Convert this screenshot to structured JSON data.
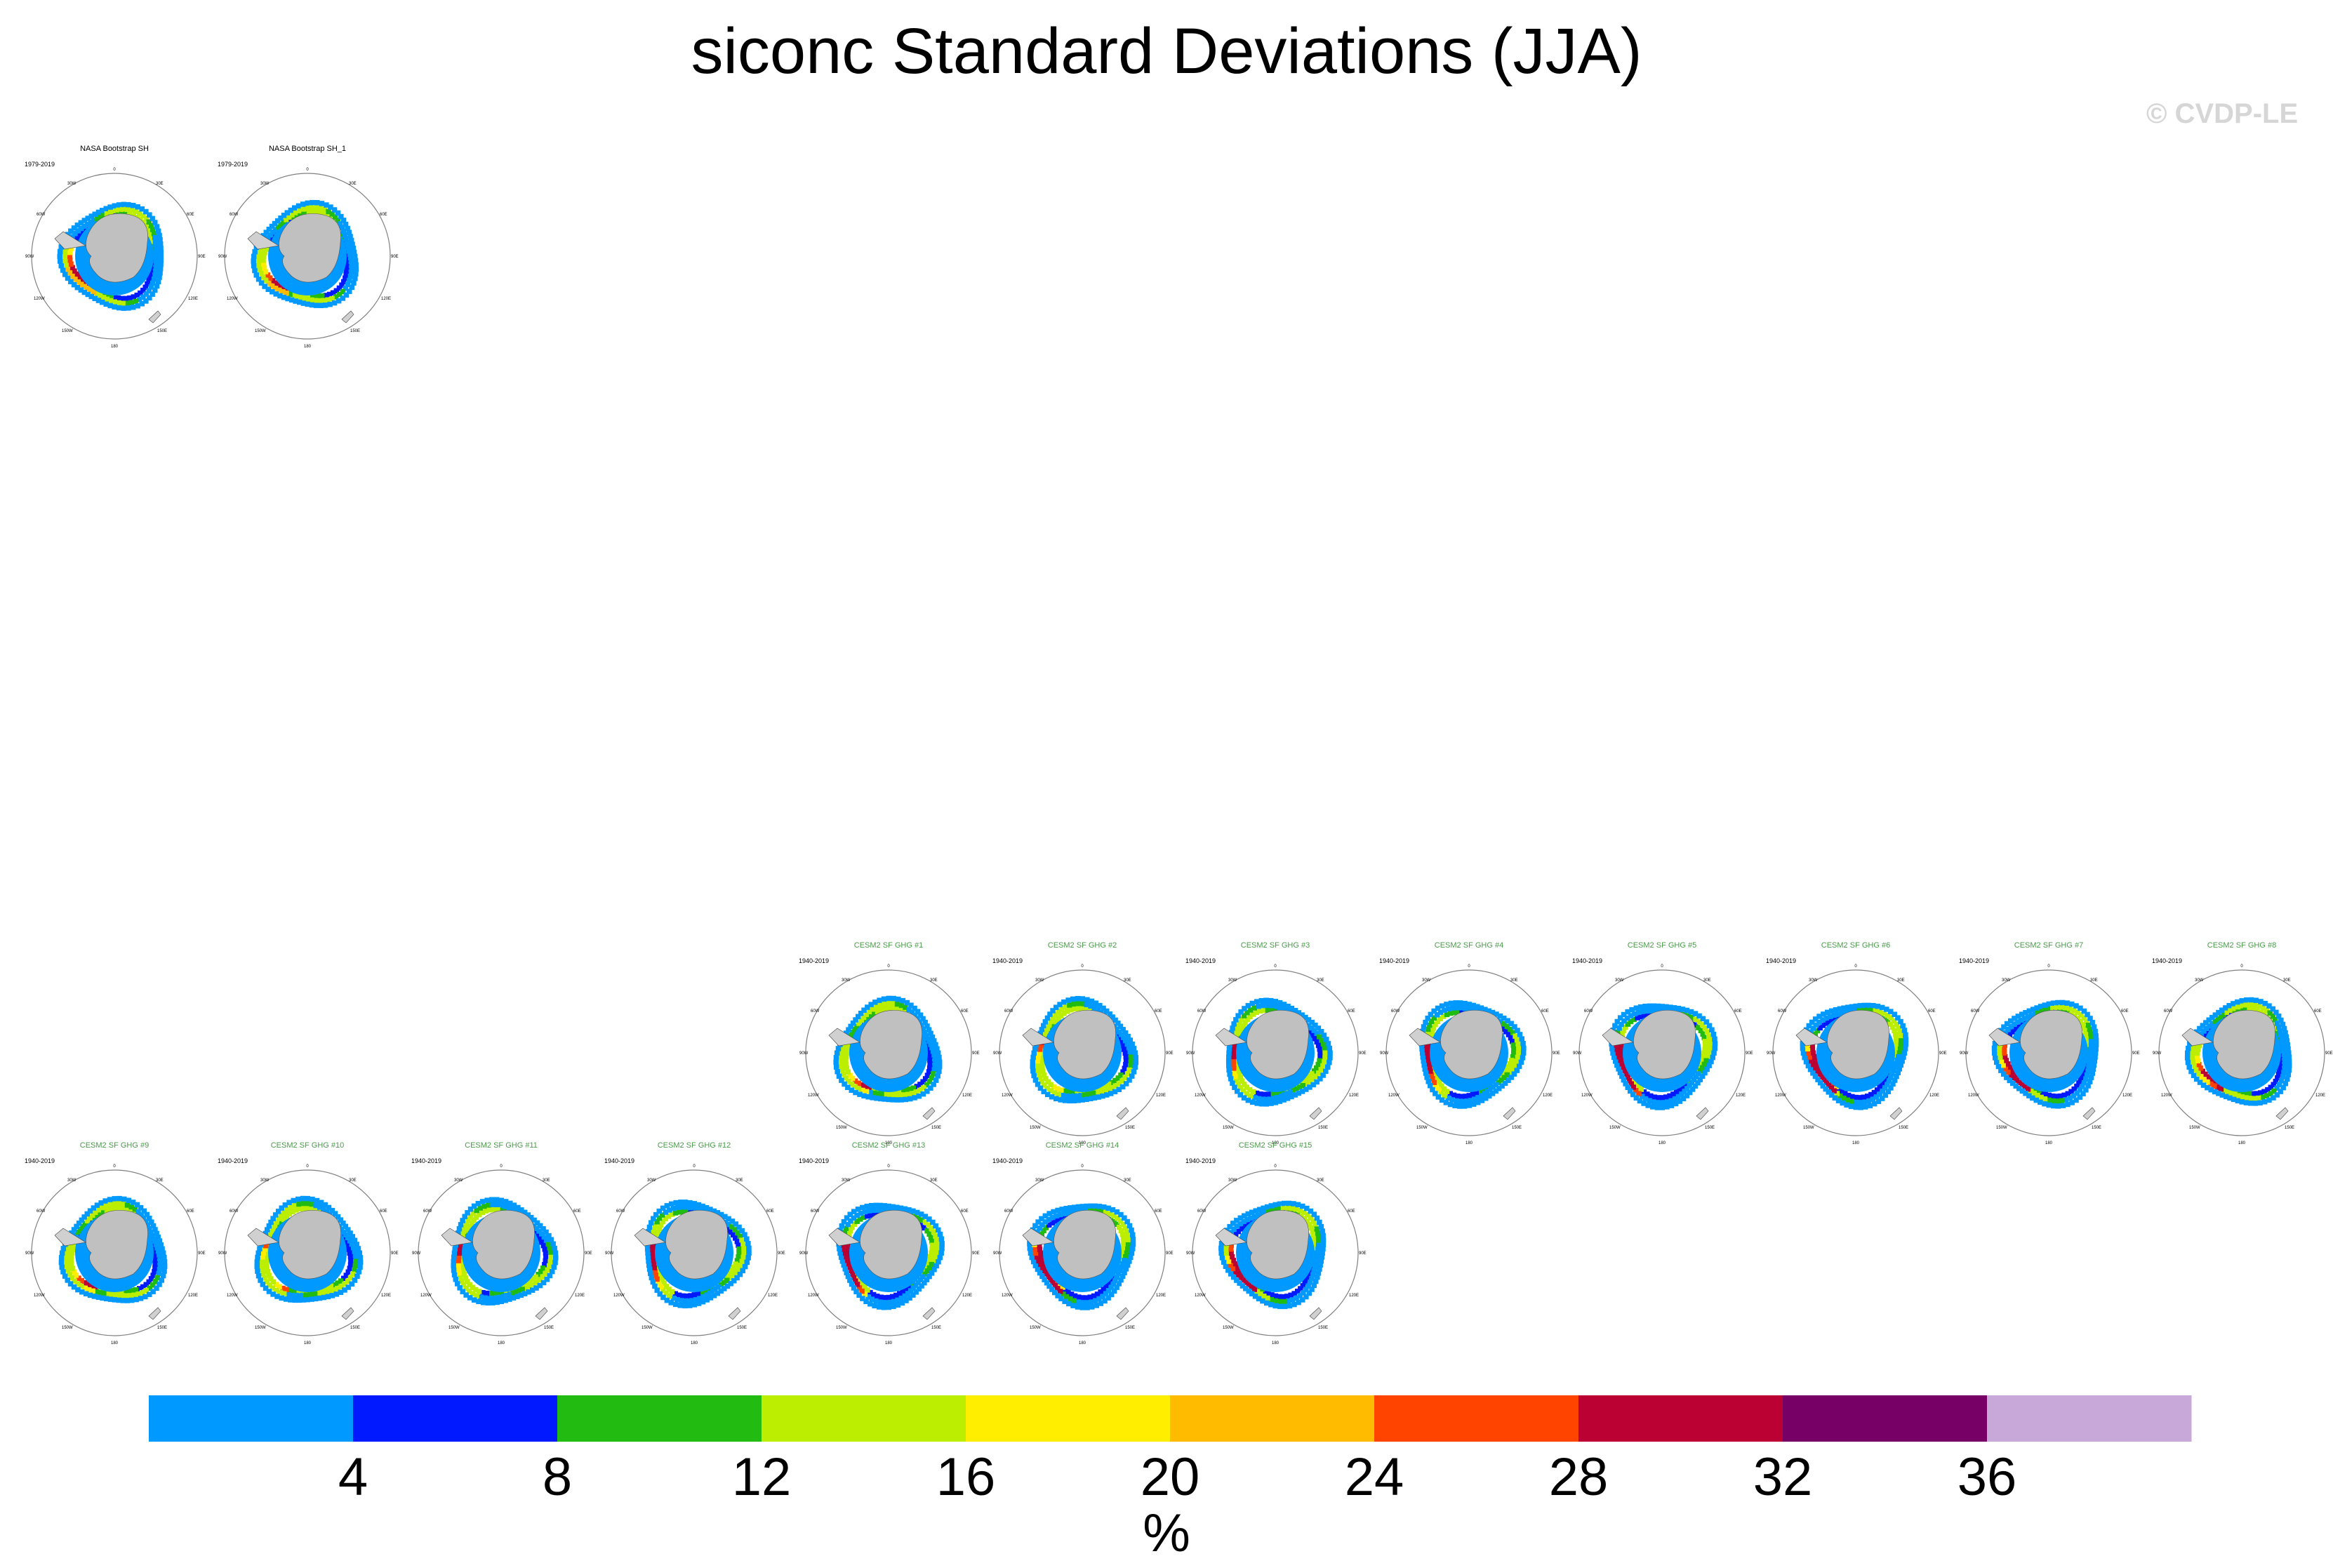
{
  "title": "siconc Standard Deviations (JJA)",
  "credit": "© CVDP-LE",
  "colors": {
    "land": "#c0c0c0",
    "ring": "#808080"
  },
  "panels": {
    "observations": [
      {
        "title": "NASA Bootstrap SH",
        "years": "1979-2019"
      },
      {
        "title": "NASA Bootstrap SH_1",
        "years": "1979-2019"
      }
    ],
    "models": [
      {
        "title": "CESM2 SF GHG #1",
        "years": "1940-2019"
      },
      {
        "title": "CESM2 SF GHG #2",
        "years": "1940-2019"
      },
      {
        "title": "CESM2 SF GHG #3",
        "years": "1940-2019"
      },
      {
        "title": "CESM2 SF GHG #4",
        "years": "1940-2019"
      },
      {
        "title": "CESM2 SF GHG #5",
        "years": "1940-2019"
      },
      {
        "title": "CESM2 SF GHG #6",
        "years": "1940-2019"
      },
      {
        "title": "CESM2 SF GHG #7",
        "years": "1940-2019"
      },
      {
        "title": "CESM2 SF GHG #8",
        "years": "1940-2019"
      },
      {
        "title": "CESM2 SF GHG #9",
        "years": "1940-2019"
      },
      {
        "title": "CESM2 SF GHG #10",
        "years": "1940-2019"
      },
      {
        "title": "CESM2 SF GHG #11",
        "years": "1940-2019"
      },
      {
        "title": "CESM2 SF GHG #12",
        "years": "1940-2019"
      },
      {
        "title": "CESM2 SF GHG #13",
        "years": "1940-2019"
      },
      {
        "title": "CESM2 SF GHG #14",
        "years": "1940-2019"
      },
      {
        "title": "CESM2 SF GHG #15",
        "years": "1940-2019"
      }
    ]
  },
  "map_labels": {
    "top": "0",
    "bottom": "180",
    "left": "90W",
    "right": "90E",
    "upper_left": "30W",
    "upper_right": "30E",
    "mid_left": "60W",
    "mid_right": "60E",
    "lower_left": "120W",
    "lower_right": "120E",
    "bottom_left": "150W",
    "bottom_right": "150E"
  },
  "chart_data": {
    "type": "heatmap",
    "title": "siconc Standard Deviations (JJA)",
    "colorbar": {
      "unit_label": "%",
      "ticks": [
        4,
        8,
        12,
        16,
        20,
        24,
        28,
        32,
        36
      ],
      "colors": [
        "#0099ff",
        "#0019ff",
        "#22bb11",
        "#bbee00",
        "#ffee00",
        "#ffbb00",
        "#ff4400",
        "#bb0033",
        "#770066",
        "#c8a8d8"
      ]
    }
  }
}
